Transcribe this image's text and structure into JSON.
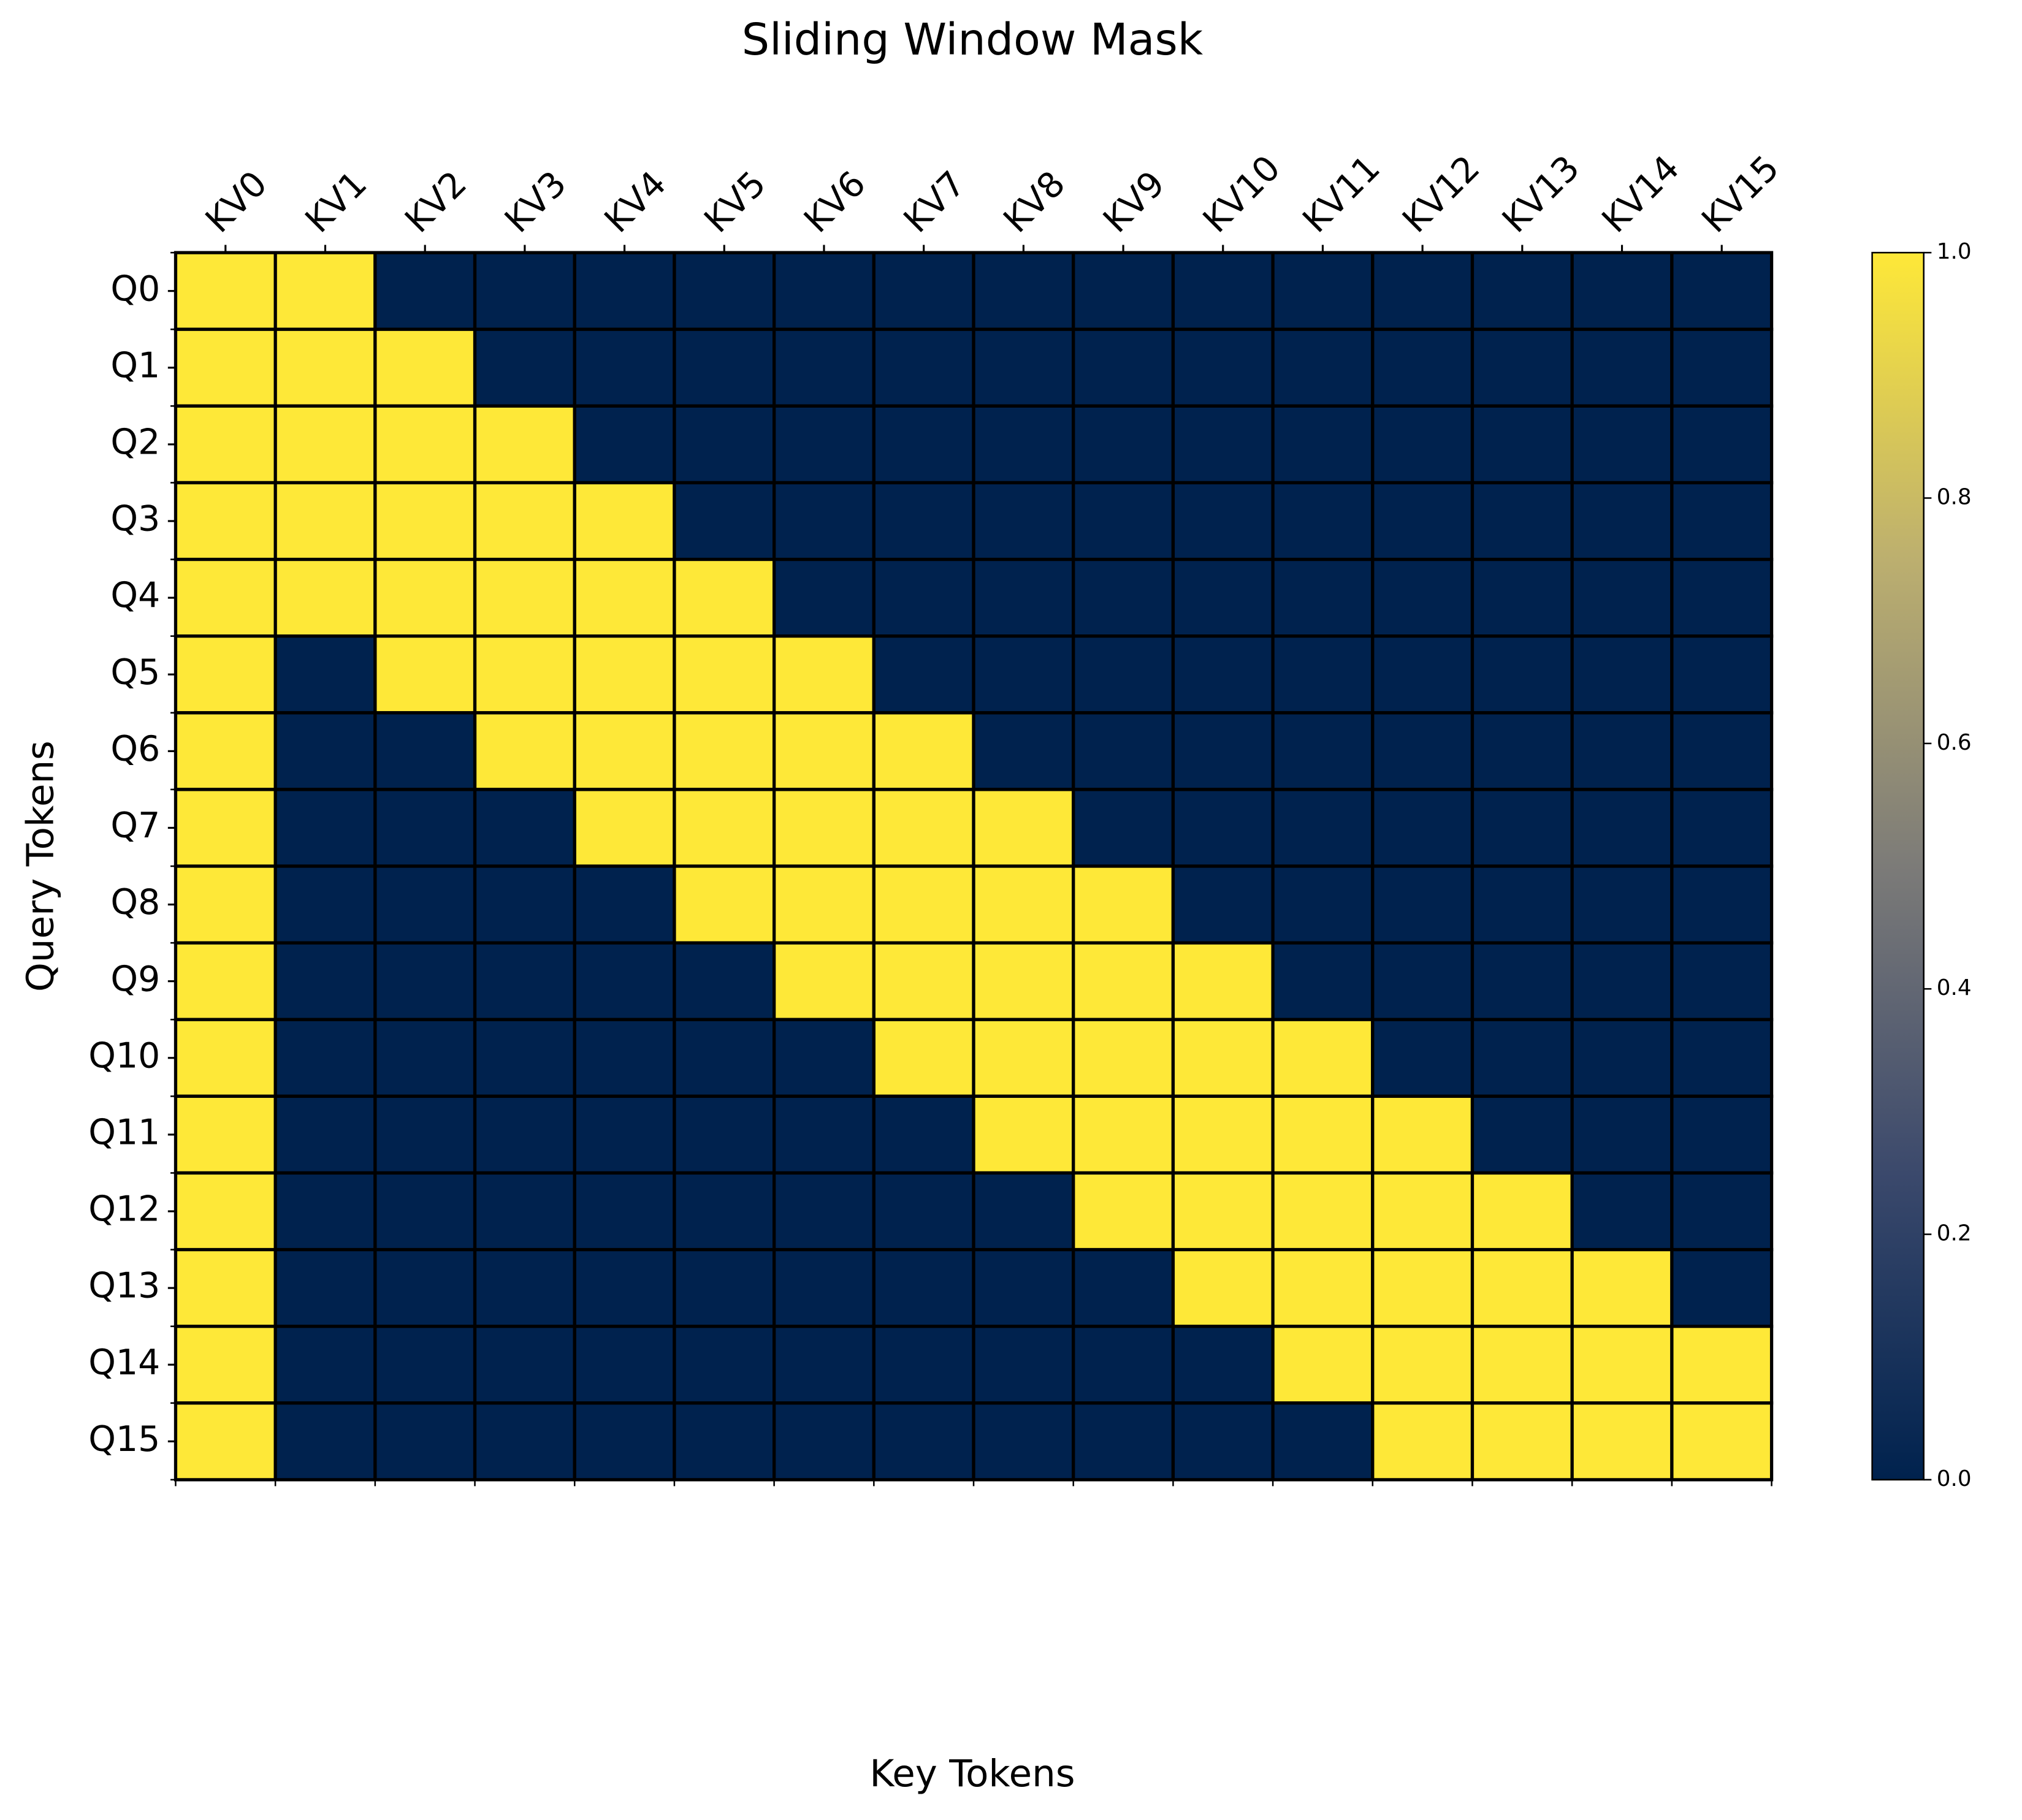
{
  "chart_data": {
    "type": "heatmap",
    "title": "Sliding Window Mask",
    "x_label": "Key Tokens",
    "y_label": "Query Tokens",
    "x_categories": [
      "KV0",
      "KV1",
      "KV2",
      "KV3",
      "KV4",
      "KV5",
      "KV6",
      "KV7",
      "KV8",
      "KV9",
      "KV10",
      "KV11",
      "KV12",
      "KV13",
      "KV14",
      "KV15"
    ],
    "y_categories": [
      "Q0",
      "Q1",
      "Q2",
      "Q3",
      "Q4",
      "Q5",
      "Q6",
      "Q7",
      "Q8",
      "Q9",
      "Q10",
      "Q11",
      "Q12",
      "Q13",
      "Q14",
      "Q15"
    ],
    "values": [
      [
        1,
        1,
        0,
        0,
        0,
        0,
        0,
        0,
        0,
        0,
        0,
        0,
        0,
        0,
        0,
        0
      ],
      [
        1,
        1,
        1,
        0,
        0,
        0,
        0,
        0,
        0,
        0,
        0,
        0,
        0,
        0,
        0,
        0
      ],
      [
        1,
        1,
        1,
        1,
        0,
        0,
        0,
        0,
        0,
        0,
        0,
        0,
        0,
        0,
        0,
        0
      ],
      [
        1,
        1,
        1,
        1,
        1,
        0,
        0,
        0,
        0,
        0,
        0,
        0,
        0,
        0,
        0,
        0
      ],
      [
        1,
        1,
        1,
        1,
        1,
        1,
        0,
        0,
        0,
        0,
        0,
        0,
        0,
        0,
        0,
        0
      ],
      [
        1,
        0,
        1,
        1,
        1,
        1,
        1,
        0,
        0,
        0,
        0,
        0,
        0,
        0,
        0,
        0
      ],
      [
        1,
        0,
        0,
        1,
        1,
        1,
        1,
        1,
        0,
        0,
        0,
        0,
        0,
        0,
        0,
        0
      ],
      [
        1,
        0,
        0,
        0,
        1,
        1,
        1,
        1,
        1,
        0,
        0,
        0,
        0,
        0,
        0,
        0
      ],
      [
        1,
        0,
        0,
        0,
        0,
        1,
        1,
        1,
        1,
        1,
        0,
        0,
        0,
        0,
        0,
        0
      ],
      [
        1,
        0,
        0,
        0,
        0,
        0,
        1,
        1,
        1,
        1,
        1,
        0,
        0,
        0,
        0,
        0
      ],
      [
        1,
        0,
        0,
        0,
        0,
        0,
        0,
        1,
        1,
        1,
        1,
        1,
        0,
        0,
        0,
        0
      ],
      [
        1,
        0,
        0,
        0,
        0,
        0,
        0,
        0,
        1,
        1,
        1,
        1,
        1,
        0,
        0,
        0
      ],
      [
        1,
        0,
        0,
        0,
        0,
        0,
        0,
        0,
        0,
        1,
        1,
        1,
        1,
        1,
        0,
        0
      ],
      [
        1,
        0,
        0,
        0,
        0,
        0,
        0,
        0,
        0,
        0,
        1,
        1,
        1,
        1,
        1,
        0
      ],
      [
        1,
        0,
        0,
        0,
        0,
        0,
        0,
        0,
        0,
        0,
        0,
        1,
        1,
        1,
        1,
        1
      ],
      [
        1,
        0,
        0,
        0,
        0,
        0,
        0,
        0,
        0,
        0,
        0,
        0,
        1,
        1,
        1,
        1
      ]
    ],
    "colormap": "cividis",
    "colormap_colors": [
      "#00224e",
      "#3b496c",
      "#7c7b78",
      "#bcaf6f",
      "#fee838"
    ],
    "colorbar_lim": [
      0,
      1
    ],
    "colorbar_ticks": [
      {
        "value": 0,
        "label": "0.0"
      },
      {
        "value": 0.2,
        "label": "0.2"
      },
      {
        "value": 0.4,
        "label": "0.4"
      },
      {
        "value": 0.6,
        "label": "0.6"
      },
      {
        "value": 0.8,
        "label": "0.8"
      },
      {
        "value": 1,
        "label": "1.0"
      }
    ]
  }
}
